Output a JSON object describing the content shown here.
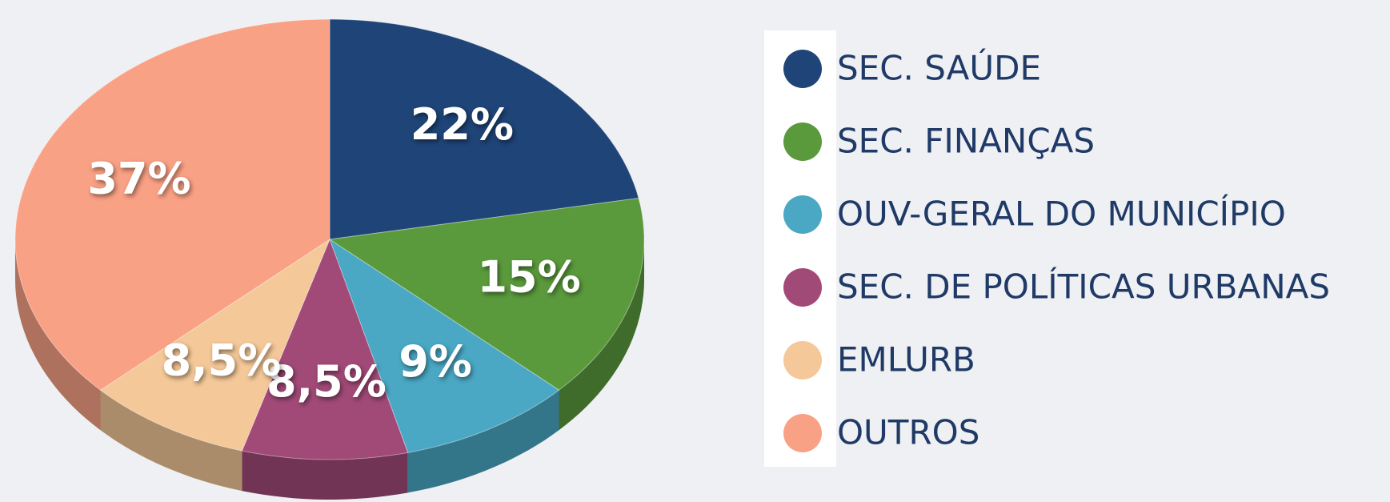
{
  "chart_data": {
    "type": "pie",
    "categories": [
      "SEC. SAÚDE",
      "SEC. FINANÇAS",
      "OUV-GERAL DO MUNICÍPIO",
      "SEC. DE POLÍTICAS URBANAS",
      "EMLURB",
      "OUTROS"
    ],
    "values": [
      22,
      15,
      9,
      8.5,
      8.5,
      37
    ],
    "value_labels": [
      "22%",
      "15%",
      "9%",
      "8,5%",
      "8,5%",
      "37%"
    ],
    "colors": [
      "#1f4477",
      "#5a9a3c",
      "#4aa8c4",
      "#a14a78",
      "#f4c898",
      "#f9a185"
    ],
    "legend": "right"
  }
}
